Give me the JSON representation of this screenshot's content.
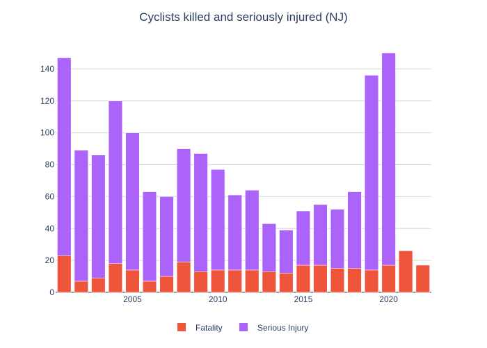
{
  "chart_data": {
    "type": "bar",
    "stacked": true,
    "title": "Cyclists killed and seriously injured (NJ)",
    "xlabel": "",
    "ylabel": "",
    "x": [
      2001,
      2002,
      2003,
      2004,
      2005,
      2006,
      2007,
      2008,
      2009,
      2010,
      2011,
      2012,
      2013,
      2014,
      2015,
      2016,
      2017,
      2018,
      2019,
      2020,
      2021,
      2022
    ],
    "xlim": [
      2000.5,
      2022.5
    ],
    "xticks": [
      2005,
      2010,
      2015,
      2020
    ],
    "ylim": [
      0,
      157
    ],
    "yticks": [
      0,
      20,
      40,
      60,
      80,
      100,
      120,
      140
    ],
    "grid": true,
    "legend_position": "bottom",
    "series": [
      {
        "name": "Fatality",
        "color": "#ef553b",
        "values": [
          23,
          7,
          9,
          18,
          14,
          7,
          10,
          19,
          13,
          14,
          14,
          14,
          13,
          12,
          17,
          17,
          15,
          15,
          14,
          17,
          26,
          17
        ]
      },
      {
        "name": "Serious Injury",
        "color": "#ab63fa",
        "values": [
          124,
          82,
          77,
          102,
          86,
          56,
          50,
          71,
          74,
          63,
          47,
          50,
          30,
          27,
          34,
          38,
          37,
          48,
          122,
          133,
          0,
          0
        ]
      }
    ]
  }
}
